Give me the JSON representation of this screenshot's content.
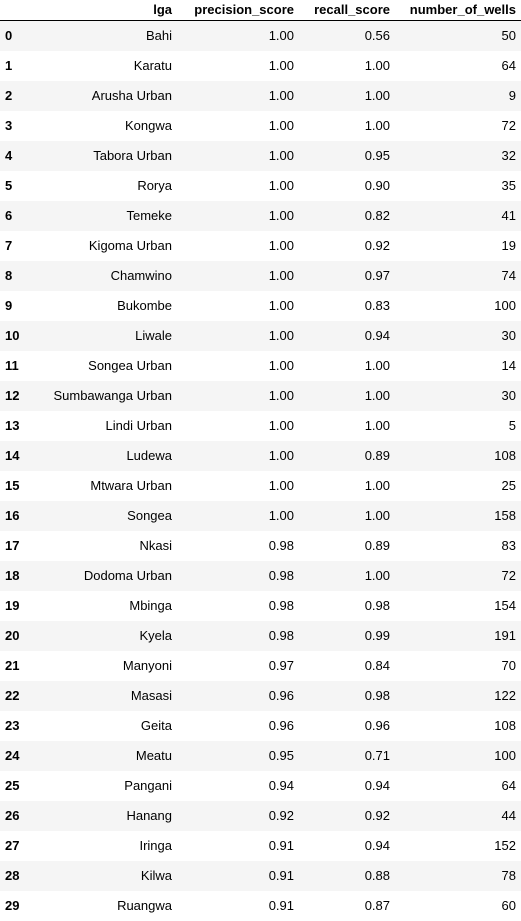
{
  "table": {
    "columns": [
      "",
      "lga",
      "precision_score",
      "recall_score",
      "number_of_wells"
    ],
    "rows": [
      {
        "index": "0",
        "lga": "Bahi",
        "precision_score": "1.00",
        "recall_score": "0.56",
        "number_of_wells": "50"
      },
      {
        "index": "1",
        "lga": "Karatu",
        "precision_score": "1.00",
        "recall_score": "1.00",
        "number_of_wells": "64"
      },
      {
        "index": "2",
        "lga": "Arusha Urban",
        "precision_score": "1.00",
        "recall_score": "1.00",
        "number_of_wells": "9"
      },
      {
        "index": "3",
        "lga": "Kongwa",
        "precision_score": "1.00",
        "recall_score": "1.00",
        "number_of_wells": "72"
      },
      {
        "index": "4",
        "lga": "Tabora Urban",
        "precision_score": "1.00",
        "recall_score": "0.95",
        "number_of_wells": "32"
      },
      {
        "index": "5",
        "lga": "Rorya",
        "precision_score": "1.00",
        "recall_score": "0.90",
        "number_of_wells": "35"
      },
      {
        "index": "6",
        "lga": "Temeke",
        "precision_score": "1.00",
        "recall_score": "0.82",
        "number_of_wells": "41"
      },
      {
        "index": "7",
        "lga": "Kigoma Urban",
        "precision_score": "1.00",
        "recall_score": "0.92",
        "number_of_wells": "19"
      },
      {
        "index": "8",
        "lga": "Chamwino",
        "precision_score": "1.00",
        "recall_score": "0.97",
        "number_of_wells": "74"
      },
      {
        "index": "9",
        "lga": "Bukombe",
        "precision_score": "1.00",
        "recall_score": "0.83",
        "number_of_wells": "100"
      },
      {
        "index": "10",
        "lga": "Liwale",
        "precision_score": "1.00",
        "recall_score": "0.94",
        "number_of_wells": "30"
      },
      {
        "index": "11",
        "lga": "Songea Urban",
        "precision_score": "1.00",
        "recall_score": "1.00",
        "number_of_wells": "14"
      },
      {
        "index": "12",
        "lga": "Sumbawanga Urban",
        "precision_score": "1.00",
        "recall_score": "1.00",
        "number_of_wells": "30"
      },
      {
        "index": "13",
        "lga": "Lindi Urban",
        "precision_score": "1.00",
        "recall_score": "1.00",
        "number_of_wells": "5"
      },
      {
        "index": "14",
        "lga": "Ludewa",
        "precision_score": "1.00",
        "recall_score": "0.89",
        "number_of_wells": "108"
      },
      {
        "index": "15",
        "lga": "Mtwara Urban",
        "precision_score": "1.00",
        "recall_score": "1.00",
        "number_of_wells": "25"
      },
      {
        "index": "16",
        "lga": "Songea",
        "precision_score": "1.00",
        "recall_score": "1.00",
        "number_of_wells": "158"
      },
      {
        "index": "17",
        "lga": "Nkasi",
        "precision_score": "0.98",
        "recall_score": "0.89",
        "number_of_wells": "83"
      },
      {
        "index": "18",
        "lga": "Dodoma Urban",
        "precision_score": "0.98",
        "recall_score": "1.00",
        "number_of_wells": "72"
      },
      {
        "index": "19",
        "lga": "Mbinga",
        "precision_score": "0.98",
        "recall_score": "0.98",
        "number_of_wells": "154"
      },
      {
        "index": "20",
        "lga": "Kyela",
        "precision_score": "0.98",
        "recall_score": "0.99",
        "number_of_wells": "191"
      },
      {
        "index": "21",
        "lga": "Manyoni",
        "precision_score": "0.97",
        "recall_score": "0.84",
        "number_of_wells": "70"
      },
      {
        "index": "22",
        "lga": "Masasi",
        "precision_score": "0.96",
        "recall_score": "0.98",
        "number_of_wells": "122"
      },
      {
        "index": "23",
        "lga": "Geita",
        "precision_score": "0.96",
        "recall_score": "0.96",
        "number_of_wells": "108"
      },
      {
        "index": "24",
        "lga": "Meatu",
        "precision_score": "0.95",
        "recall_score": "0.71",
        "number_of_wells": "100"
      },
      {
        "index": "25",
        "lga": "Pangani",
        "precision_score": "0.94",
        "recall_score": "0.94",
        "number_of_wells": "64"
      },
      {
        "index": "26",
        "lga": "Hanang",
        "precision_score": "0.92",
        "recall_score": "0.92",
        "number_of_wells": "44"
      },
      {
        "index": "27",
        "lga": "Iringa",
        "precision_score": "0.91",
        "recall_score": "0.94",
        "number_of_wells": "152"
      },
      {
        "index": "28",
        "lga": "Kilwa",
        "precision_score": "0.91",
        "recall_score": "0.88",
        "number_of_wells": "78"
      },
      {
        "index": "29",
        "lga": "Ruangwa",
        "precision_score": "0.91",
        "recall_score": "0.87",
        "number_of_wells": "60"
      }
    ]
  },
  "colors": {
    "stripe": "#f5f5f5",
    "background": "#ffffff",
    "header_rule": "#000000"
  }
}
